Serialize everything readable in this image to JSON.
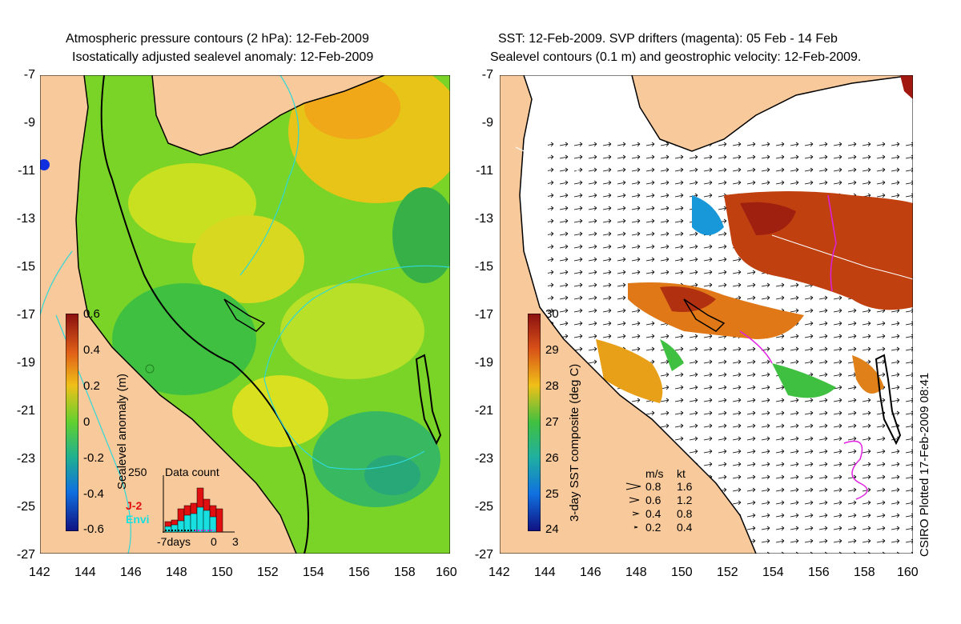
{
  "left_panel": {
    "title_line1": "Atmospheric pressure contours (2 hPa): 12-Feb-2009",
    "title_line2": "Isostatically adjusted sealevel anomaly: 12-Feb-2009",
    "y_ticks": [
      "-7",
      "-9",
      "-11",
      "-13",
      "-15",
      "-17",
      "-19",
      "-21",
      "-23",
      "-25",
      "-27"
    ],
    "x_ticks": [
      "142",
      "144",
      "146",
      "148",
      "150",
      "152",
      "154",
      "156",
      "158",
      "160"
    ],
    "colorbar": {
      "label": "Sealevel anomaly (m)",
      "ticks": [
        "0.6",
        "0.4",
        "0.2",
        "0",
        "-0.2",
        "-0.4",
        "-0.6"
      ],
      "range": [
        -0.6,
        0.6
      ]
    },
    "histogram": {
      "title": "Data count",
      "y_max_label": "250",
      "x_labels": [
        "-7days",
        "0",
        "3"
      ],
      "series_names": [
        "J-2",
        "Envi"
      ],
      "series_colors": [
        "#e01010",
        "#18e0e0"
      ]
    }
  },
  "right_panel": {
    "title_line1": "SST: 12-Feb-2009. SVP drifters (magenta): 05 Feb - 14 Feb",
    "title_line2": "Sealevel contours (0.1 m) and geostrophic velocity: 12-Feb-2009.",
    "y_ticks": [
      "-7",
      "-9",
      "-11",
      "-13",
      "-15",
      "-17",
      "-19",
      "-21",
      "-23",
      "-25",
      "-27"
    ],
    "x_ticks": [
      "142",
      "144",
      "146",
      "148",
      "150",
      "152",
      "154",
      "156",
      "158",
      "160"
    ],
    "colorbar": {
      "label": "3-day SST composite (deg C)",
      "ticks": [
        "30",
        "29",
        "28",
        "27",
        "26",
        "25",
        "24"
      ],
      "range": [
        24,
        30
      ]
    },
    "velocity_legend": {
      "header_ms": "m/s",
      "header_kt": "kt",
      "rows": [
        {
          "ms": "0.8",
          "kt": "1.6"
        },
        {
          "ms": "0.6",
          "kt": "1.2"
        },
        {
          "ms": "0.4",
          "kt": "0.8"
        },
        {
          "ms": "0.2",
          "kt": "0.4"
        }
      ]
    },
    "credit": "CSIRO Plotted 17-Feb-2009 08:41"
  },
  "colors": {
    "land": "#f8c99a",
    "coast": "#000000",
    "pressure_contour": "#30d8d8",
    "drifter": "#e020e0"
  }
}
